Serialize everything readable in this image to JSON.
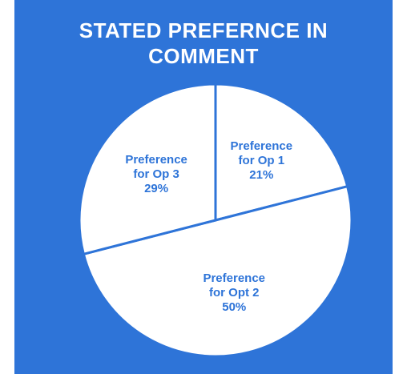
{
  "chart_data": {
    "type": "pie",
    "title": "STATED PREFERNCE IN COMMENT",
    "categories": [
      "Preference for Op 1",
      "Preference for Opt 2",
      "Preference for Op 3"
    ],
    "values": [
      21,
      50,
      29
    ],
    "value_labels": [
      "21%",
      "50%",
      "29%"
    ],
    "background": "#2e74d8",
    "slice_color": "#ffffff",
    "border_color": "#2e74d8",
    "label_color": "#2e74d8"
  }
}
